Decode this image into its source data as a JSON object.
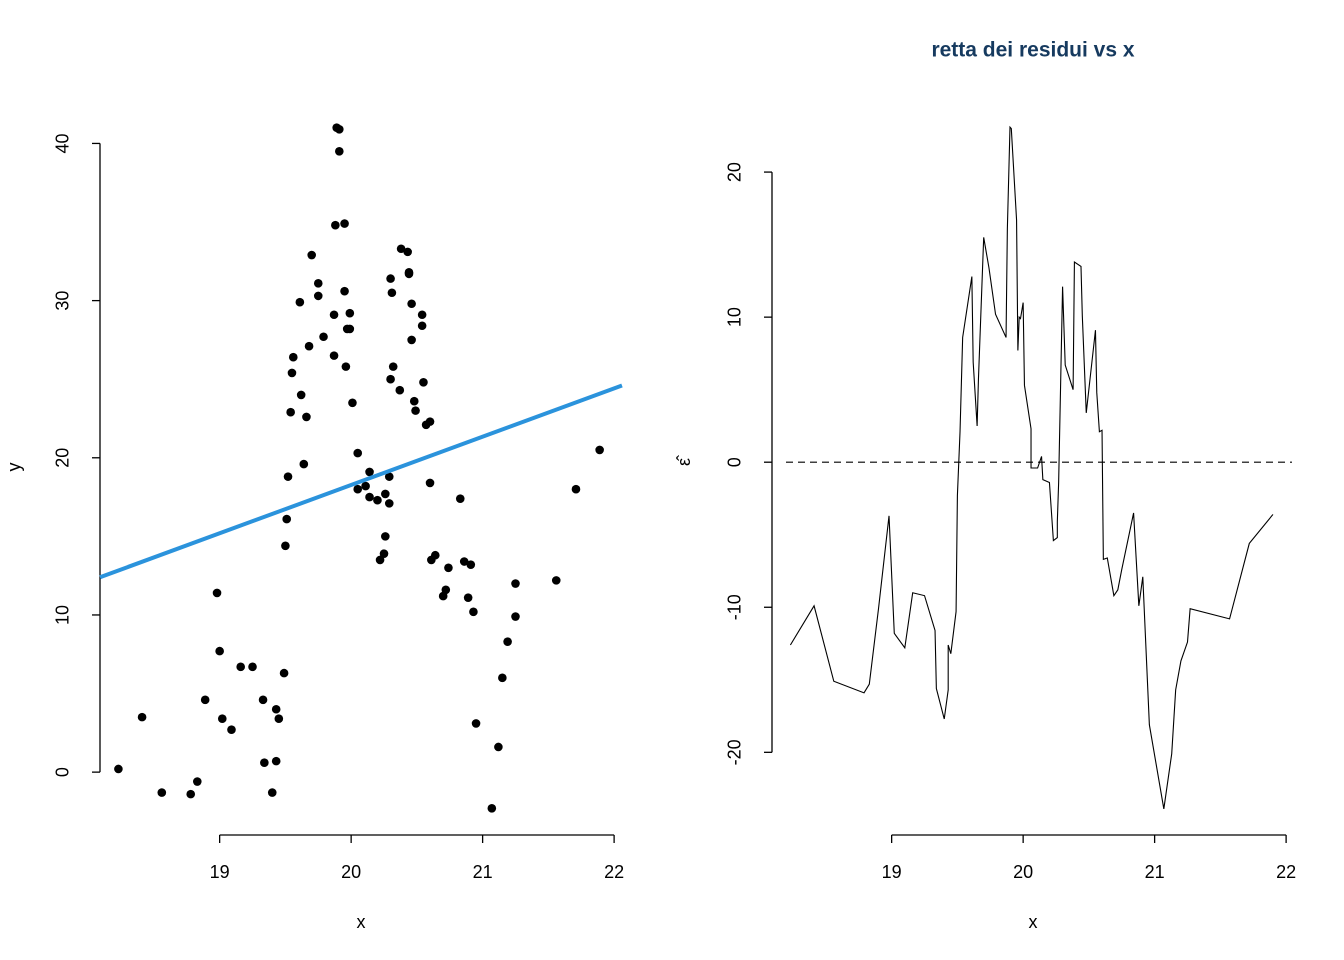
{
  "chart_data": [
    {
      "type": "scatter",
      "xlabel": "x",
      "ylabel": "y",
      "color": "#000000",
      "xlim": [
        18.09,
        22.06
      ],
      "ylim": [
        -4.0,
        42.7
      ],
      "xticks": [
        19,
        20,
        21,
        22
      ],
      "yticks": [
        0,
        10,
        20,
        30,
        40
      ],
      "x": [
        18.23,
        18.41,
        18.56,
        18.78,
        18.83,
        18.89,
        18.98,
        19.0,
        19.02,
        19.09,
        19.16,
        19.25,
        19.33,
        19.34,
        19.4,
        19.43,
        19.43,
        19.45,
        19.49,
        19.5,
        19.51,
        19.52,
        19.54,
        19.55,
        19.56,
        19.61,
        19.62,
        19.64,
        19.66,
        19.68,
        19.7,
        19.75,
        19.75,
        19.79,
        19.87,
        19.87,
        19.88,
        19.89,
        19.91,
        19.91,
        19.95,
        19.95,
        19.96,
        19.97,
        19.99,
        19.99,
        20.01,
        20.05,
        20.05,
        20.11,
        20.14,
        20.14,
        20.2,
        20.22,
        20.25,
        20.26,
        20.26,
        20.29,
        20.29,
        20.3,
        20.3,
        20.31,
        20.32,
        20.37,
        20.38,
        20.43,
        20.44,
        20.44,
        20.46,
        20.46,
        20.48,
        20.49,
        20.54,
        20.54,
        20.55,
        20.57,
        20.6,
        20.6,
        20.61,
        20.64,
        20.7,
        20.72,
        20.74,
        20.83,
        20.86,
        20.89,
        20.91,
        20.93,
        20.95,
        21.07,
        21.12,
        21.15,
        21.19,
        21.25,
        21.25,
        21.56,
        21.71,
        21.89
      ],
      "y": [
        0.2,
        3.5,
        -1.3,
        -1.4,
        -0.6,
        4.6,
        11.4,
        7.7,
        3.4,
        2.7,
        6.7,
        6.7,
        4.6,
        0.6,
        -1.3,
        0.7,
        4.0,
        3.4,
        6.3,
        14.4,
        16.1,
        18.8,
        22.9,
        25.4,
        26.4,
        29.9,
        24.0,
        19.6,
        22.6,
        27.1,
        32.9,
        31.1,
        30.3,
        27.7,
        26.5,
        29.1,
        34.8,
        41.0,
        40.9,
        39.5,
        34.9,
        30.6,
        25.8,
        28.2,
        28.2,
        29.2,
        23.5,
        20.3,
        18.0,
        18.2,
        19.1,
        17.5,
        17.3,
        13.5,
        13.9,
        15.0,
        17.7,
        17.1,
        18.8,
        25.0,
        31.4,
        30.5,
        25.8,
        24.3,
        33.3,
        33.1,
        31.8,
        31.7,
        29.8,
        27.5,
        23.6,
        23.0,
        29.1,
        28.4,
        24.8,
        22.1,
        22.3,
        18.4,
        13.5,
        13.8,
        11.2,
        11.6,
        13.0,
        17.4,
        13.4,
        11.1,
        13.2,
        10.2,
        3.1,
        -2.3,
        1.6,
        6.0,
        8.3,
        9.9,
        12.0,
        12.2,
        18.0,
        20.5
      ],
      "fit_line": {
        "color": "#2b93dc",
        "x": [
          18.09,
          22.06
        ],
        "y": [
          12.4,
          24.6
        ]
      }
    },
    {
      "type": "line",
      "title": "retta dei residui vs x",
      "xlabel": "x",
      "ylabel": "ε̂",
      "color": "#000000",
      "xlim": [
        18.09,
        22.06
      ],
      "ylim": [
        -25.7,
        24.9
      ],
      "xticks": [
        19,
        20,
        21,
        22
      ],
      "yticks": [
        -20,
        -10,
        0,
        10,
        20
      ],
      "reference_line": 0,
      "x": [
        18.23,
        18.41,
        18.56,
        18.79,
        18.83,
        18.9,
        18.98,
        19.02,
        19.1,
        19.16,
        19.25,
        19.33,
        19.34,
        19.4,
        19.43,
        19.43,
        19.45,
        19.49,
        19.5,
        19.52,
        19.54,
        19.61,
        19.62,
        19.65,
        19.66,
        19.7,
        19.74,
        19.79,
        19.87,
        19.88,
        19.9,
        19.91,
        19.95,
        19.96,
        19.97,
        19.98,
        20.0,
        20.01,
        20.06,
        20.06,
        20.11,
        20.14,
        20.15,
        20.2,
        20.23,
        20.26,
        20.26,
        20.27,
        20.3,
        20.32,
        20.38,
        20.39,
        20.44,
        20.45,
        20.48,
        20.55,
        20.56,
        20.58,
        20.6,
        20.61,
        20.64,
        20.69,
        20.72,
        20.75,
        20.84,
        20.88,
        20.91,
        20.96,
        21.07,
        21.13,
        21.16,
        21.2,
        21.25,
        21.27,
        21.57,
        21.72,
        21.9
      ],
      "values": [
        -12.6,
        -9.9,
        -15.1,
        -15.9,
        -15.3,
        -10.1,
        -3.7,
        -11.8,
        -12.8,
        -9.0,
        -9.2,
        -11.6,
        -15.6,
        -17.7,
        -15.7,
        -12.6,
        -13.2,
        -10.3,
        -2.3,
        2.1,
        8.6,
        12.8,
        6.9,
        2.5,
        5.7,
        15.5,
        13.4,
        10.2,
        8.6,
        16.1,
        23.1,
        23.0,
        16.7,
        7.7,
        10.0,
        9.9,
        11.0,
        5.3,
        2.3,
        -0.4,
        -0.4,
        0.4,
        -1.2,
        -1.4,
        -5.4,
        -5.2,
        -4.1,
        -1.4,
        12.1,
        6.7,
        5.0,
        13.8,
        13.5,
        10.1,
        3.4,
        9.1,
        4.8,
        2.1,
        2.2,
        -6.7,
        -6.6,
        -9.2,
        -8.8,
        -7.4,
        -3.5,
        -9.9,
        -7.9,
        -18.1,
        -23.9,
        -20.1,
        -15.7,
        -13.7,
        -12.4,
        -10.1,
        -10.8,
        -5.6,
        -3.6
      ]
    }
  ]
}
